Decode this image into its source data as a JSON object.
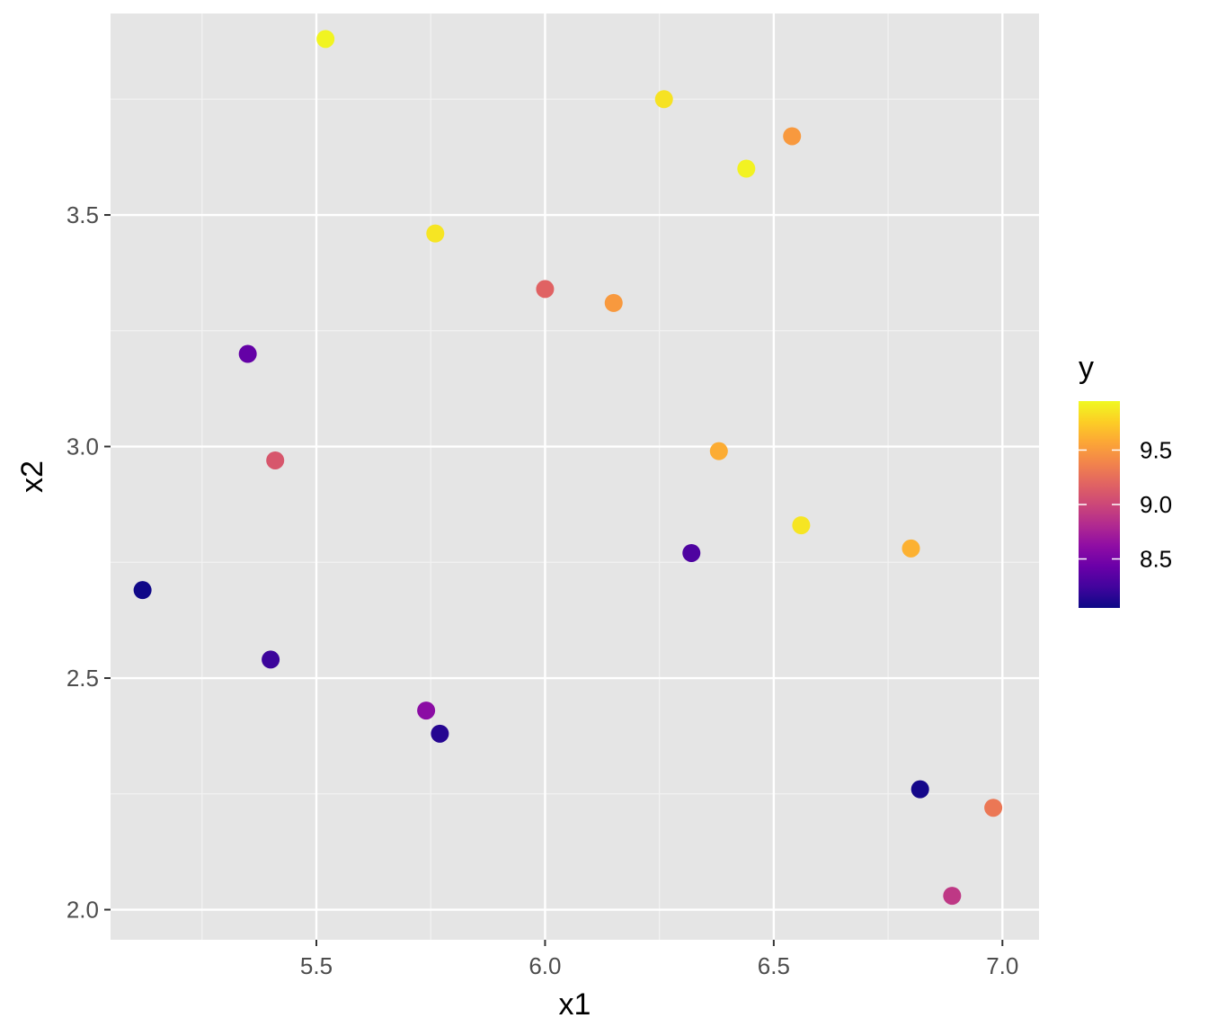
{
  "chart_data": {
    "type": "scatter",
    "xlabel": "x1",
    "ylabel": "x2",
    "xlim": [
      5.05,
      7.08
    ],
    "ylim": [
      1.935,
      3.935
    ],
    "x_ticks": [
      5.5,
      6.0,
      6.5,
      7.0
    ],
    "x_tick_labels": [
      "5.5",
      "6.0",
      "6.5",
      "7.0"
    ],
    "y_ticks": [
      2.0,
      2.5,
      3.0,
      3.5
    ],
    "y_tick_labels": [
      "2.0",
      "2.5",
      "3.0",
      "3.5"
    ],
    "grid": true,
    "legend": {
      "title": "y",
      "type": "colorbar",
      "palette": "plasma",
      "range": [
        8.05,
        9.95
      ],
      "ticks": [
        8.5,
        9.0,
        9.5
      ],
      "tick_labels": [
        "8.5",
        "9.0",
        "9.5"
      ],
      "placement": "right"
    },
    "points": [
      {
        "x": 5.52,
        "y": 3.88,
        "color_value": 9.93
      },
      {
        "x": 6.26,
        "y": 3.75,
        "color_value": 9.85
      },
      {
        "x": 6.54,
        "y": 3.67,
        "color_value": 9.5
      },
      {
        "x": 6.44,
        "y": 3.6,
        "color_value": 9.92
      },
      {
        "x": 5.76,
        "y": 3.46,
        "color_value": 9.86
      },
      {
        "x": 6.0,
        "y": 3.34,
        "color_value": 9.18
      },
      {
        "x": 6.15,
        "y": 3.31,
        "color_value": 9.5
      },
      {
        "x": 5.35,
        "y": 3.2,
        "color_value": 8.4
      },
      {
        "x": 6.38,
        "y": 2.99,
        "color_value": 9.6
      },
      {
        "x": 5.41,
        "y": 2.97,
        "color_value": 9.1
      },
      {
        "x": 6.56,
        "y": 2.83,
        "color_value": 9.86
      },
      {
        "x": 6.8,
        "y": 2.78,
        "color_value": 9.62
      },
      {
        "x": 6.32,
        "y": 2.77,
        "color_value": 8.3
      },
      {
        "x": 5.12,
        "y": 2.69,
        "color_value": 8.06
      },
      {
        "x": 5.4,
        "y": 2.54,
        "color_value": 8.22
      },
      {
        "x": 5.74,
        "y": 2.43,
        "color_value": 8.6
      },
      {
        "x": 5.77,
        "y": 2.38,
        "color_value": 8.14
      },
      {
        "x": 6.82,
        "y": 2.26,
        "color_value": 8.08
      },
      {
        "x": 6.98,
        "y": 2.22,
        "color_value": 9.3
      },
      {
        "x": 6.89,
        "y": 2.03,
        "color_value": 8.9
      }
    ]
  }
}
